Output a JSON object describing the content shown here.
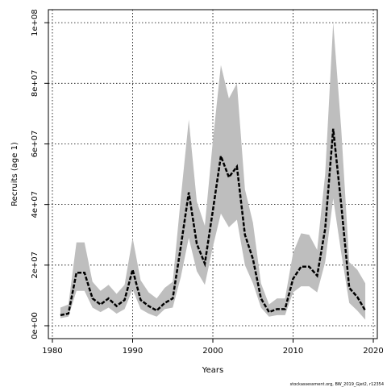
{
  "chart_data": {
    "type": "line",
    "x_label": "Years",
    "y_label": "Recruits (age 1)",
    "source": "stockassessment.org, BW_2019_Gjet2, r12354",
    "x": [
      1981,
      1982,
      1983,
      1984,
      1985,
      1986,
      1987,
      1988,
      1989,
      1990,
      1991,
      1992,
      1993,
      1994,
      1995,
      1996,
      1997,
      1998,
      1999,
      2000,
      2001,
      2002,
      2003,
      2004,
      2005,
      2006,
      2007,
      2008,
      2009,
      2010,
      2011,
      2012,
      2013,
      2014,
      2015,
      2016,
      2017,
      2018,
      2019
    ],
    "series": [
      {
        "color": "#000000",
        "band_color": "#bebebe",
        "values": [
          3500000,
          4000000,
          17500000,
          17500000,
          9000000,
          7000000,
          9000000,
          6500000,
          8500000,
          18500000,
          8500000,
          6500000,
          5000000,
          7500000,
          9000000,
          26000000,
          44000000,
          27000000,
          20500000,
          38000000,
          56000000,
          49000000,
          52500000,
          30000000,
          22000000,
          9000000,
          4500000,
          5500000,
          5500000,
          15500000,
          19500000,
          19500000,
          16500000,
          32000000,
          65000000,
          40000000,
          12500000,
          9500000,
          5000000
        ],
        "upper": [
          6000000,
          7000000,
          27500000,
          27500000,
          14500000,
          11500000,
          13500000,
          10500000,
          13500000,
          29000000,
          15000000,
          11000000,
          9000000,
          12500000,
          14500000,
          42000000,
          68000000,
          41000000,
          33000000,
          61000000,
          86000000,
          75000000,
          80000000,
          45000000,
          34000000,
          14000000,
          7000000,
          9000000,
          9000000,
          24000000,
          30500000,
          30000000,
          25000000,
          50000000,
          100000000,
          65000000,
          21000000,
          18500000,
          14000000
        ],
        "lower": [
          2500000,
          3000000,
          11500000,
          11500000,
          6000000,
          4500000,
          6000000,
          4000000,
          5500000,
          12000000,
          5500000,
          4000000,
          3000000,
          5500000,
          6000000,
          16000000,
          29000000,
          18000000,
          13500000,
          26000000,
          37000000,
          32500000,
          35000000,
          20000000,
          14000000,
          6000000,
          3000000,
          3500000,
          3500000,
          11000000,
          13000000,
          13000000,
          11000000,
          21000000,
          42000000,
          24000000,
          7500000,
          5000000,
          2000000
        ]
      }
    ],
    "xlim": [
      1979.5,
      2020.5
    ],
    "ylim": [
      -4260000,
      104300000
    ],
    "xticks": [
      1980,
      1990,
      2000,
      2010,
      2020
    ],
    "yticks": [
      {
        "value": 0,
        "label": "0e+00"
      },
      {
        "value": 20000000,
        "label": "2e+07"
      },
      {
        "value": 40000000,
        "label": "4e+07"
      },
      {
        "value": 60000000,
        "label": "6e+07"
      },
      {
        "value": 80000000,
        "label": "8e+07"
      },
      {
        "value": 100000000,
        "label": "1e+08"
      }
    ],
    "grid": true
  }
}
